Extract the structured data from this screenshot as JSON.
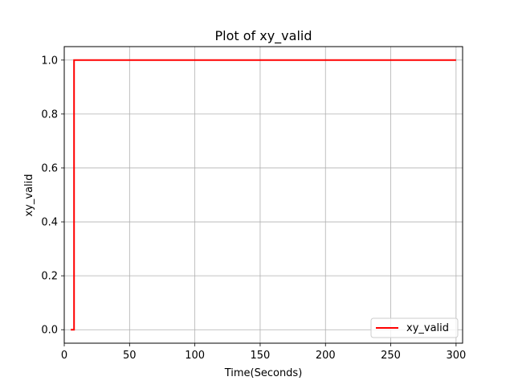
{
  "chart_data": {
    "type": "line",
    "title": "Plot of xy_valid",
    "xlabel": "Time(Seconds)",
    "ylabel": "xy_valid",
    "xlim": [
      0,
      305
    ],
    "ylim": [
      -0.05,
      1.05
    ],
    "xticks": [
      0,
      50,
      100,
      150,
      200,
      250,
      300
    ],
    "yticks": [
      0.0,
      0.2,
      0.4,
      0.6,
      0.8,
      1.0
    ],
    "xtick_labels": [
      "0",
      "50",
      "100",
      "150",
      "200",
      "250",
      "300"
    ],
    "ytick_labels": [
      "0.0",
      "0.2",
      "0.4",
      "0.6",
      "0.8",
      "1.0"
    ],
    "grid": true,
    "legend_position": "lower-right",
    "series": [
      {
        "name": "xy_valid",
        "color": "#ff0000",
        "x": [
          5,
          7.5,
          7.5,
          300
        ],
        "y": [
          0,
          0,
          1,
          1
        ]
      }
    ]
  }
}
